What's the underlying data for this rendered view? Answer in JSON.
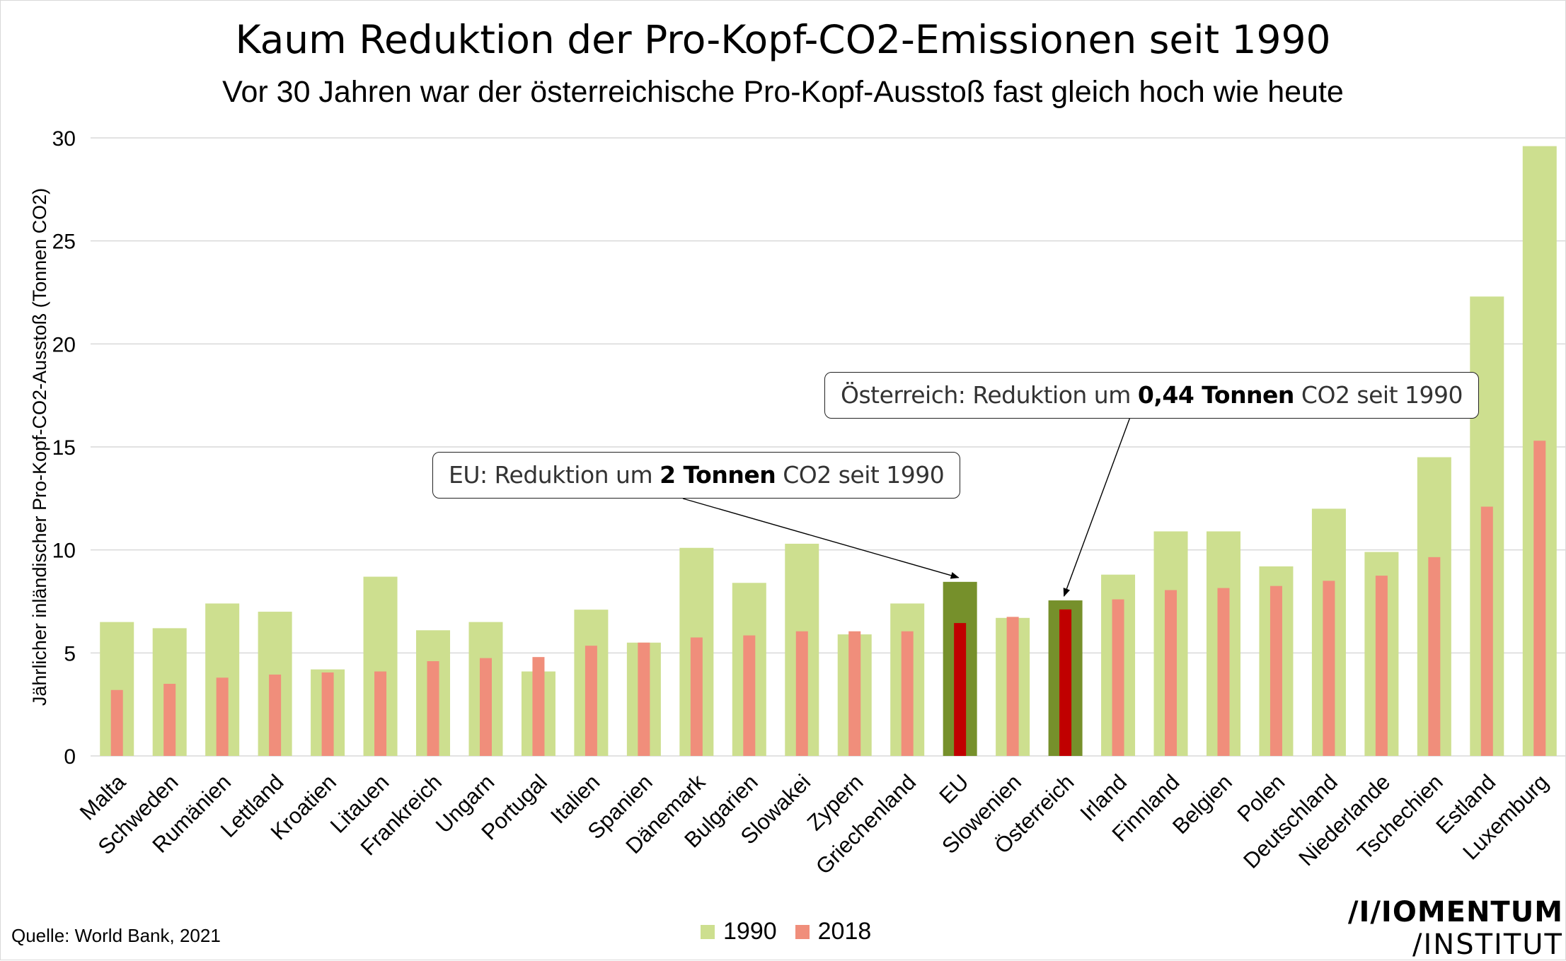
{
  "title": "Kaum Reduktion der Pro-Kopf-CO2-Emissionen seit 1990",
  "subtitle": "Vor 30 Jahren war der österreichische Pro-Kopf-Ausstoß fast gleich hoch wie heute",
  "source": "Quelle: World Bank, 2021",
  "logo": {
    "line1": "/I/IOMENTUM",
    "line2": "/INSTITUT"
  },
  "colors": {
    "c1990": "#cddf8f",
    "c2018": "#f08e7b",
    "highlight1990": "#76902b",
    "highlight2018": "#c00000",
    "grid": "#d9d9d9"
  },
  "callouts": {
    "eu": {
      "prefix": "EU: Reduktion um ",
      "bold": "2 Tonnen",
      "suffix": " CO2 seit 1990"
    },
    "at": {
      "prefix": "Österreich: Reduktion um ",
      "bold": "0,44 Tonnen",
      "suffix": " CO2 seit 1990"
    }
  },
  "chart_data": {
    "type": "bar",
    "title": "Kaum Reduktion der Pro-Kopf-CO2-Emissionen seit 1990",
    "subtitle": "Vor 30 Jahren war der österreichische Pro-Kopf-Ausstoß fast gleich hoch wie heute",
    "xlabel": "",
    "ylabel": "Jährlicher inländischer Pro-Kopf-CO2-Ausstoß (Tonnen CO2)",
    "ylim": [
      0,
      30
    ],
    "yticks": [
      0,
      5,
      10,
      15,
      20,
      25,
      30
    ],
    "grid": true,
    "legend_position": "bottom",
    "categories": [
      "Malta",
      "Schweden",
      "Rumänien",
      "Lettland",
      "Kroatien",
      "Litauen",
      "Frankreich",
      "Ungarn",
      "Portugal",
      "Italien",
      "Spanien",
      "Dänemark",
      "Bulgarien",
      "Slowakei",
      "Zypern",
      "Griechenland",
      "EU",
      "Slowenien",
      "Österreich",
      "Irland",
      "Finnland",
      "Belgien",
      "Polen",
      "Deutschland",
      "Niederlande",
      "Tschechien",
      "Estland",
      "Luxemburg"
    ],
    "highlighted": [
      "EU",
      "Österreich"
    ],
    "series": [
      {
        "name": "1990",
        "values": [
          6.5,
          6.2,
          7.4,
          7.0,
          4.2,
          8.7,
          6.1,
          6.5,
          4.1,
          7.1,
          5.5,
          10.1,
          8.4,
          10.3,
          5.9,
          7.4,
          8.45,
          6.7,
          7.55,
          8.8,
          10.9,
          10.9,
          9.2,
          12.0,
          9.9,
          14.5,
          22.3,
          29.6
        ]
      },
      {
        "name": "2018",
        "values": [
          3.2,
          3.5,
          3.8,
          3.95,
          4.05,
          4.1,
          4.6,
          4.75,
          4.8,
          5.35,
          5.5,
          5.75,
          5.85,
          6.05,
          6.05,
          6.05,
          6.45,
          6.75,
          7.11,
          7.6,
          8.05,
          8.15,
          8.25,
          8.5,
          8.75,
          9.65,
          12.1,
          15.3
        ]
      }
    ]
  }
}
